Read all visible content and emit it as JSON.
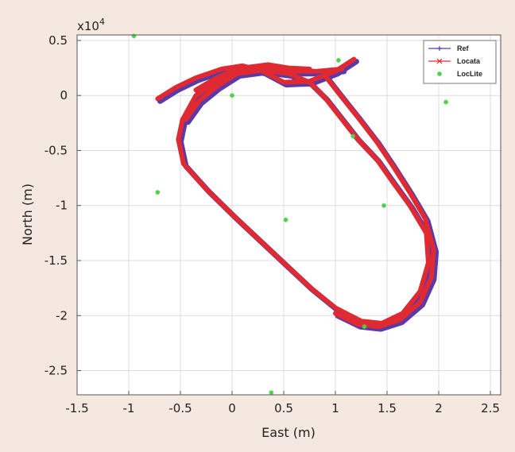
{
  "chart_data": {
    "type": "scatter",
    "xlabel": "East (m)",
    "ylabel": "North (m)",
    "y_multiplier_label": {
      "base": "x10",
      "exp": "4"
    },
    "xlim": [
      -1.5,
      2.6
    ],
    "ylim": [
      -2.72,
      0.55
    ],
    "x_ticks": [
      -1.5,
      -1,
      -0.5,
      0,
      0.5,
      1,
      1.5,
      2,
      2.5
    ],
    "y_ticks": [
      0.5,
      0,
      -0.5,
      -1,
      -1.5,
      -2,
      -2.5
    ],
    "x_tick_labels": [
      "-1.5",
      "-1",
      "-0.5",
      "0",
      "0.5",
      "1",
      "1.5",
      "2",
      "2.5"
    ],
    "y_tick_labels": [
      "0.5",
      "0",
      "-0.5",
      "-1",
      "-1.5",
      "-2",
      "-2.5"
    ],
    "grid": true,
    "legend_position": "top-right",
    "legend": [
      "Ref",
      "Locata",
      "LocLite"
    ],
    "colors": {
      "Ref": "#5a3aa8",
      "Locata": "#e02a32",
      "LocLite": "#4cd04c"
    },
    "series": [
      {
        "name": "Ref",
        "style": "line-plus",
        "paths": [
          [
            [
              1.18,
              0.33
            ],
            [
              1.0,
              0.22
            ],
            [
              0.75,
              0.13
            ],
            [
              0.5,
              0.12
            ],
            [
              0.3,
              0.22
            ],
            [
              0.1,
              0.27
            ],
            [
              -0.1,
              0.24
            ],
            [
              -0.35,
              0.16
            ],
            [
              -0.55,
              0.07
            ],
            [
              -0.72,
              -0.03
            ]
          ],
          [
            [
              1.06,
              0.24
            ],
            [
              0.82,
              0.22
            ],
            [
              0.55,
              0.22
            ],
            [
              0.3,
              0.26
            ],
            [
              0.05,
              0.24
            ],
            [
              -0.17,
              0.15
            ],
            [
              -0.35,
              0.05
            ]
          ],
          [
            [
              0.75,
              0.24
            ],
            [
              0.55,
              0.25
            ],
            [
              0.35,
              0.28
            ],
            [
              0.1,
              0.25
            ],
            [
              -0.15,
              0.12
            ],
            [
              -0.35,
              0.0
            ],
            [
              -0.48,
              -0.22
            ],
            [
              -0.52,
              -0.4
            ],
            [
              -0.47,
              -0.62
            ],
            [
              -0.25,
              -0.85
            ],
            [
              0.0,
              -1.08
            ],
            [
              0.25,
              -1.3
            ],
            [
              0.5,
              -1.52
            ],
            [
              0.75,
              -1.74
            ],
            [
              1.0,
              -1.93
            ],
            [
              1.25,
              -2.05
            ],
            [
              1.45,
              -2.07
            ],
            [
              1.65,
              -1.98
            ],
            [
              1.82,
              -1.78
            ],
            [
              1.9,
              -1.52
            ],
            [
              1.88,
              -1.25
            ],
            [
              1.72,
              -1.0
            ],
            [
              1.55,
              -0.78
            ],
            [
              1.4,
              -0.58
            ],
            [
              1.2,
              -0.38
            ],
            [
              1.05,
              -0.2
            ],
            [
              0.9,
              -0.02
            ],
            [
              0.75,
              0.12
            ],
            [
              0.55,
              0.2
            ],
            [
              0.3,
              0.23
            ],
            [
              0.05,
              0.2
            ],
            [
              -0.15,
              0.08
            ],
            [
              -0.32,
              -0.05
            ],
            [
              -0.45,
              -0.22
            ]
          ],
          [
            [
              0.9,
              0.18
            ],
            [
              1.05,
              0.0
            ],
            [
              1.22,
              -0.2
            ],
            [
              1.4,
              -0.42
            ],
            [
              1.55,
              -0.63
            ],
            [
              1.72,
              -0.88
            ],
            [
              1.87,
              -1.12
            ],
            [
              1.95,
              -1.4
            ],
            [
              1.93,
              -1.65
            ],
            [
              1.82,
              -1.88
            ],
            [
              1.62,
              -2.04
            ],
            [
              1.42,
              -2.1
            ],
            [
              1.22,
              -2.08
            ],
            [
              1.0,
              -1.98
            ]
          ]
        ]
      },
      {
        "name": "Locata",
        "style": "line-x",
        "paths": [
          [
            [
              1.18,
              0.33
            ],
            [
              1.0,
              0.22
            ],
            [
              0.75,
              0.13
            ],
            [
              0.5,
              0.12
            ],
            [
              0.3,
              0.22
            ],
            [
              0.1,
              0.27
            ],
            [
              -0.1,
              0.24
            ],
            [
              -0.35,
              0.16
            ],
            [
              -0.55,
              0.07
            ],
            [
              -0.72,
              -0.03
            ]
          ],
          [
            [
              1.06,
              0.24
            ],
            [
              0.82,
              0.22
            ],
            [
              0.55,
              0.22
            ],
            [
              0.3,
              0.26
            ],
            [
              0.05,
              0.24
            ],
            [
              -0.17,
              0.15
            ],
            [
              -0.35,
              0.05
            ]
          ],
          [
            [
              0.75,
              0.24
            ],
            [
              0.55,
              0.25
            ],
            [
              0.35,
              0.28
            ],
            [
              0.1,
              0.25
            ],
            [
              -0.15,
              0.12
            ],
            [
              -0.35,
              0.0
            ],
            [
              -0.48,
              -0.22
            ],
            [
              -0.52,
              -0.4
            ],
            [
              -0.47,
              -0.62
            ],
            [
              -0.25,
              -0.85
            ],
            [
              0.0,
              -1.08
            ],
            [
              0.25,
              -1.3
            ],
            [
              0.5,
              -1.52
            ],
            [
              0.75,
              -1.74
            ],
            [
              1.0,
              -1.93
            ],
            [
              1.25,
              -2.05
            ],
            [
              1.45,
              -2.07
            ],
            [
              1.65,
              -1.98
            ],
            [
              1.82,
              -1.78
            ],
            [
              1.9,
              -1.52
            ],
            [
              1.88,
              -1.25
            ],
            [
              1.72,
              -1.0
            ],
            [
              1.55,
              -0.78
            ],
            [
              1.4,
              -0.58
            ],
            [
              1.2,
              -0.38
            ],
            [
              1.05,
              -0.2
            ],
            [
              0.9,
              -0.02
            ],
            [
              0.75,
              0.12
            ],
            [
              0.55,
              0.2
            ],
            [
              0.3,
              0.23
            ],
            [
              0.05,
              0.2
            ],
            [
              -0.15,
              0.08
            ],
            [
              -0.32,
              -0.05
            ],
            [
              -0.45,
              -0.22
            ]
          ],
          [
            [
              0.9,
              0.18
            ],
            [
              1.05,
              0.0
            ],
            [
              1.22,
              -0.2
            ],
            [
              1.4,
              -0.42
            ],
            [
              1.55,
              -0.63
            ],
            [
              1.72,
              -0.88
            ],
            [
              1.87,
              -1.12
            ],
            [
              1.95,
              -1.4
            ],
            [
              1.93,
              -1.65
            ],
            [
              1.82,
              -1.88
            ],
            [
              1.62,
              -2.04
            ],
            [
              1.42,
              -2.1
            ],
            [
              1.22,
              -2.08
            ],
            [
              1.0,
              -1.98
            ]
          ]
        ]
      },
      {
        "name": "LocLite",
        "style": "marker-star",
        "points": [
          [
            -0.95,
            0.54
          ],
          [
            -0.72,
            -0.88
          ],
          [
            0.0,
            0.0
          ],
          [
            0.52,
            -1.13
          ],
          [
            1.03,
            0.32
          ],
          [
            1.17,
            -0.37
          ],
          [
            1.47,
            -1.0
          ],
          [
            2.07,
            -0.06
          ],
          [
            1.28,
            -2.1
          ],
          [
            0.38,
            -2.7
          ]
        ]
      }
    ]
  }
}
